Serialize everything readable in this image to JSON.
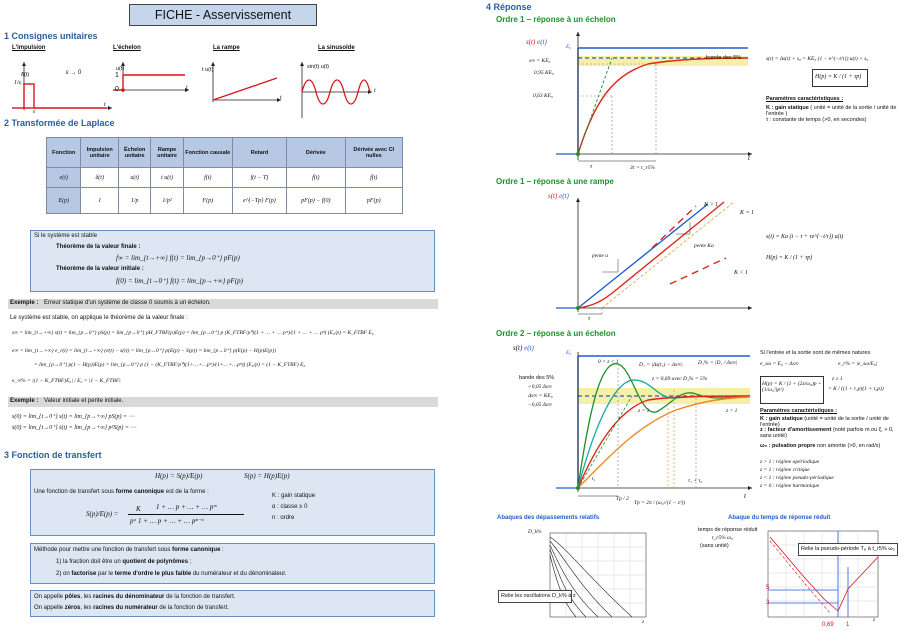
{
  "page_title": "FICHE - Asservissement",
  "s1": {
    "title": "1  Consignes unitaires",
    "impulse": {
      "title": "L'impulsion",
      "ylabel": "δ(t)",
      "note": "ε → 0",
      "frac": "1/ε",
      "eps": "ε",
      "t": "t"
    },
    "step": {
      "title": "L'échelon",
      "ylabel": "u(t)",
      "one": "1",
      "zero": "0",
      "t": "t"
    },
    "ramp": {
      "title": "La rampe",
      "ylabel": "t u(t)",
      "t": "t"
    },
    "sine": {
      "title": "La sinusoïde",
      "ylabel": "sin(t) u(t)",
      "t": "t"
    }
  },
  "s2": {
    "title": "2  Transformée de Laplace",
    "headers": [
      "Fonction",
      "Impulsion unitaire",
      "Échelon unitaire",
      "Rampe unitaire",
      "Fonction causale",
      "Retard",
      "Dérivée",
      "Dérivée avec CI nulles"
    ],
    "row_e": [
      "e(t)",
      "δ(t)",
      "u(t)",
      "t u(t)",
      "f(t)",
      "f(t − T)",
      "ḟ(t)",
      "ḟ(t)"
    ],
    "row_E": [
      "E(p)",
      "1",
      "1/p",
      "1/p²",
      "F(p)",
      "e^{−Tp} F(p)",
      "pF(p) − f(0)",
      "pF(p)"
    ],
    "stable_intro": "Si le système est stable",
    "final_title": "Théorème de la valeur finale :",
    "final_eq": "f∞ = lim_{t→+∞} f(t) = lim_{p→0⁺} pF(p)",
    "initial_title": "Théorème de la valeur initiale :",
    "initial_eq": "f(0) = lim_{t→0⁺} f(t) = lim_{p→+∞} pF(p)",
    "ex1_label": "Exemple :",
    "ex1_text": "Erreur statique d'un système de classe 0 soumis à un échelon.",
    "ex1_intro": "Le système est stable, on applique le théorème de la valeur finale :",
    "eq1": "s∞ = lim_{t→+∞} s(t) = lim_{p→0⁺} pS(p) = lim_{p→0⁺} pH_FTBF(p)E(p) = lim_{p→0⁺} p (K_FTBF/p⁰)(1 + … + … pᵐ)/(1 + … + … pⁿ) (E₀/p) = K_FTBF E₀",
    "eq2": "e∞ = lim_{t→+∞} e_r(t) = lim_{t→+∞} (e(t) − s(t)) = lim_{p→0⁺} p(E(p) − S(p)) = lim_{p→0⁺} p(E(p) − H(p)E(p))",
    "eq3": "= lim_{p→0⁺} p(1 − H(p))E(p) = lim_{p→0⁺} p (1 − (K_FTBF/p⁰)(1+…+…pᵐ)/(1+…+…pⁿ)) (E₀/p) = (1 − K_FTBF) E₀",
    "eq4": "e_∞% = |(1 − K_FTBF)E₀| / E₀ = |1 − K_FTBF|",
    "ex2_label": "Exemple :",
    "ex2_text": "Valeur initiale et pente initiale.",
    "eq5": "s(0) = lim_{t→0⁺} s(t) = lim_{p→+∞} pS(p) = ⋯",
    "eq6": "ṡ(0) = lim_{t→0⁺} ṡ(t) = lim_{p→+∞} p²S(p) = ⋯"
  },
  "s3": {
    "title": "3  Fonction de transfert",
    "eq_top_h": "H(p) = S(p)/E(p)",
    "eq_top_s": "S(p) = H(p)E(p)",
    "canon_intro_a": "Une fonction de transfert sous ",
    "canon_intro_b": "forme canonique",
    "canon_intro_c": " est de la forme :",
    "canon_lhs": "S(p)/E(p) =",
    "canon_k": "K",
    "canon_num": "1 + … p + … + … pᵐ",
    "canon_den": "pᵅ  1 + … p + … + … pⁿ⁻ᵅ",
    "legend_k": "K : gain statique",
    "legend_alpha": "α : classe ≥ 0",
    "legend_n": "n : ordre",
    "method_a": "Méthode pour mettre une fonction de transfert sous ",
    "method_b": "forme canonique",
    "method_c": " :",
    "method_1a": "1) la fraction doit être un ",
    "method_1b": "quotient de polynômes",
    "method_1c": " ;",
    "method_2a": "2) on ",
    "method_2b": "factorise",
    "method_2c": " par le ",
    "method_2d": "terme d'ordre le plus faible",
    "method_2e": " du numérateur et du dénominateur.",
    "poles_a": "On appelle ",
    "poles_b": "pôles",
    "poles_c": ", les ",
    "poles_d": "racines du dénominateur",
    "poles_e": " de la fonction de transfert.",
    "zeros_a": "On appelle ",
    "zeros_b": "zéros",
    "zeros_c": ", les ",
    "zeros_d": "racines du numérateur",
    "zeros_e": " de la fonction de transfert."
  },
  "s4": {
    "title": "4  Réponse",
    "o1_step_title": "Ordre 1 – réponse à un échelon",
    "o1_step": {
      "s_label": "s(t)",
      "e_label": "e(t)",
      "E0": "E₀",
      "s_inf": "s∞ = KE₀",
      "y095": "0,95 KE₀",
      "y063": "0,63 KE₀",
      "band": "bande des 5%",
      "tau": "τ",
      "t5": "3τ = t_r5%",
      "t": "t",
      "eq_s": "s(t) = Δs(t) + s₀ = KE₀ (1 − e^{−t/τ}) u(t) + s₀",
      "eq_h": "H(p) = K / (1 + τp)",
      "params_title": "Paramètres caractéristiques :",
      "param_k_a": "K : gain statique",
      "param_k_b": " ( unité = unité de la sortie / unité de l'entrée )",
      "param_tau": "τ : constante de temps (>0, en secondes)"
    },
    "o1_ramp_title": "Ordre 1 – réponse à une rampe",
    "o1_ramp": {
      "s_label": "s(t)",
      "e_label": "e(t)",
      "k_gt": "K > 1",
      "k_eq": "K = 1",
      "k_lt": "K < 1",
      "slope_a": "pente a",
      "slope_ka": "pente Ka",
      "tau": "τ",
      "eq_s": "s(t) = Ka (t − τ + τe^{−t/τ}) u(t)",
      "eq_h": "H(p) = K / (1 + τp)"
    },
    "o2_title": "Ordre 2 – réponse à un échelon",
    "o2": {
      "s_label": "s(t)",
      "e_label": "e(t)",
      "E0": "E₀",
      "z_range": "0 < z < 1",
      "d1": "D₁ = |Δs(t₁) − Δs∞|",
      "d1p": "D₁% = |D₁ / Δs∞|",
      "band": "bande des 5%",
      "z069": "z = 0,69  avec D₁% = 5%",
      "y105": "+0,05 Δs∞",
      "ysinf": "Δs∞ = KE₀",
      "y095": "−0,05 Δs∞",
      "z1": "z = 1",
      "zgt": "z > 1",
      "t1": "t₁",
      "tsum": "τ₁ + τ₂",
      "tp": "Tp / 2",
      "tp_eq": "Tp = 2π / (ω₀√(1 − z²))",
      "t": "t",
      "note": "Si l'entrée et la sortie sont de mêmes natures",
      "def_e": "e_sω = E₀ − Δs∞",
      "def_rel": "e_r% = |e_sω/E₀|",
      "eq_h": "H(p) = K / (1 + (2z/ω₀)p + (1/ω₀²)p²)",
      "eq_cond": "z ≥ 1",
      "eq_h2": "= K / ((1 + τ₁p)(1 + τ₂p))",
      "params_title": "Paramètres caractéristiques :",
      "p_k_a": "K : gain statique",
      "p_k_b": " (unité = unité de la sortie / unité de l'entrée)",
      "p_z_a": "z : facteur d'amortissement",
      "p_z_b": " (noté parfois m ou ξ, > 0, sans unité)",
      "p_w_a": "ω₀ : pulsation propre",
      "p_w_b": " non amortie (>0, en rad/s)",
      "r1": "z > 1 : régime apériodique",
      "r2": "z = 1 : régime critique",
      "r3": "z < 1 : régime pseudo-périodique",
      "r4": "z = 0 : régime harmonique"
    },
    "abaque1_title": "Abaques des dépassements relatifs",
    "abaque1": {
      "ylabel": "D_k%",
      "note": "Relie les oscillations D_k% à z",
      "xlabel": "z"
    },
    "abaque2_title": "Abaque du temps de réponse réduit",
    "abaque2": {
      "ylabel_1": "temps de réponse réduit",
      "ylabel_2": "t_r5% ω₀",
      "ylabel_3": "(sans unité)",
      "note": "Relie la pseudo-période Tₚ à t_r5% ω₀",
      "v5": "5",
      "v3": "3",
      "z069": "0,69",
      "one": "1",
      "xlabel": "z"
    }
  },
  "colors": {
    "title_bg": "#c5d6ec",
    "heading": "#2d5e9e",
    "order_heading": "#1e8f2a",
    "blue_box": "#dde7f4",
    "red_curve": "#e0261c",
    "blue_curve": "#1f5dd0"
  }
}
